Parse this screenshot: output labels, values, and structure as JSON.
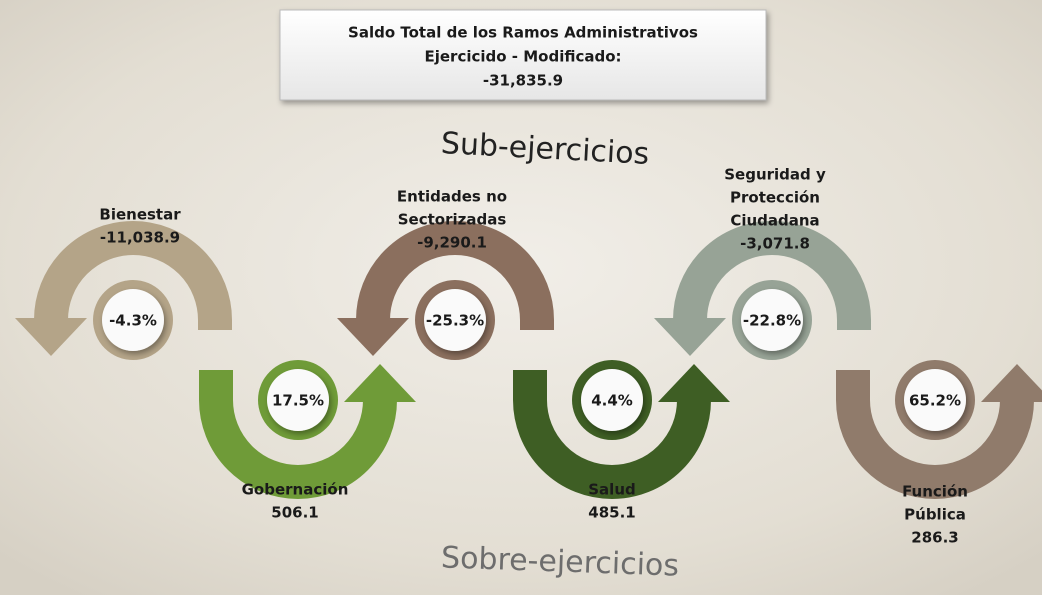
{
  "header": {
    "lines": [
      "Saldo Total de los Ramos Administrativos",
      "Ejercicido - Modificado:",
      "-31,835.9"
    ]
  },
  "top_label": "Sub-ejercicios",
  "bottom_label": "Sobre-ejercicios",
  "items": [
    {
      "name": [
        "Bienestar"
      ],
      "amount": "-11,038.9",
      "percent": "-4.3%"
    },
    {
      "name": [
        "Gobernación"
      ],
      "amount": "506.1",
      "percent": "17.5%"
    },
    {
      "name": [
        "Entidades no",
        "Sectorizadas"
      ],
      "amount": "-9,290.1",
      "percent": "-25.3%"
    },
    {
      "name": [
        "Salud"
      ],
      "amount": "485.1",
      "percent": "4.4%"
    },
    {
      "name": [
        "Seguridad y",
        "Protección",
        "Ciudadana"
      ],
      "amount": "-3,071.8",
      "percent": "-22.8%"
    },
    {
      "name": [
        "Función",
        "Pública"
      ],
      "amount": "286.3",
      "percent": "65.2%"
    }
  ]
}
